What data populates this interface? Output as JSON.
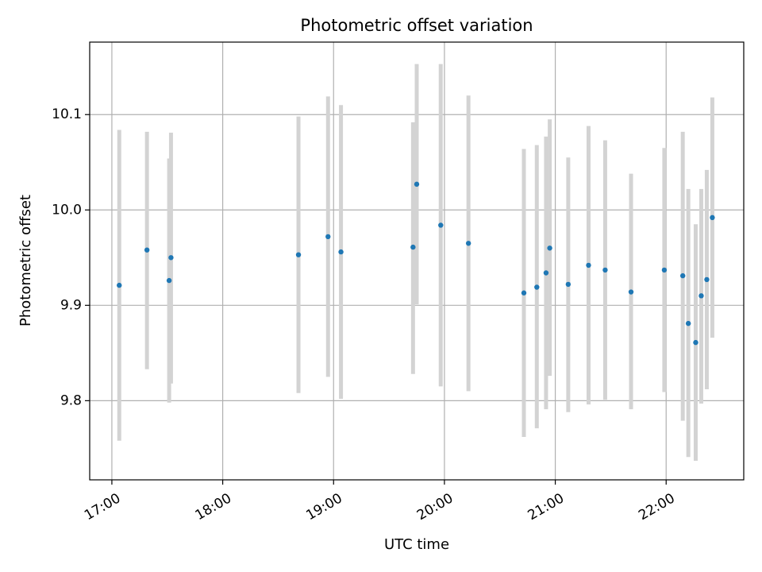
{
  "chart_data": {
    "type": "scatter",
    "title": "Photometric offset variation",
    "xlabel": "UTC time",
    "ylabel": "Photometric offset",
    "x_ticks": [
      "17:00",
      "18:00",
      "19:00",
      "20:00",
      "21:00",
      "22:00"
    ],
    "y_ticks": [
      "9.8",
      "9.9",
      "10.0",
      "10.1"
    ],
    "xlim": [
      "16:48",
      "22:42"
    ],
    "ylim": [
      9.717,
      10.176
    ],
    "grid": true,
    "errorbar_color": "#d3d3d3",
    "marker_color": "#1f77b4",
    "series": [
      {
        "points": [
          {
            "time": "17:04",
            "value": 9.921,
            "err_low": 9.758,
            "err_high": 10.084
          },
          {
            "time": "17:19",
            "value": 9.958,
            "err_low": 9.833,
            "err_high": 10.082
          },
          {
            "time": "17:31",
            "value": 9.926,
            "err_low": 9.798,
            "err_high": 10.054
          },
          {
            "time": "17:32",
            "value": 9.95,
            "err_low": 9.818,
            "err_high": 10.081
          },
          {
            "time": "18:41",
            "value": 9.953,
            "err_low": 9.808,
            "err_high": 10.098
          },
          {
            "time": "18:57",
            "value": 9.972,
            "err_low": 9.825,
            "err_high": 10.119
          },
          {
            "time": "19:04",
            "value": 9.956,
            "err_low": 9.802,
            "err_high": 10.11
          },
          {
            "time": "19:43",
            "value": 9.961,
            "err_low": 9.828,
            "err_high": 10.092
          },
          {
            "time": "19:45",
            "value": 10.027,
            "err_low": 9.901,
            "err_high": 10.153
          },
          {
            "time": "19:58",
            "value": 9.984,
            "err_low": 9.815,
            "err_high": 10.153
          },
          {
            "time": "20:13",
            "value": 9.965,
            "err_low": 9.81,
            "err_high": 10.12
          },
          {
            "time": "20:43",
            "value": 9.913,
            "err_low": 9.762,
            "err_high": 10.064
          },
          {
            "time": "20:50",
            "value": 9.919,
            "err_low": 9.771,
            "err_high": 10.068
          },
          {
            "time": "20:55",
            "value": 9.934,
            "err_low": 9.791,
            "err_high": 10.077
          },
          {
            "time": "20:57",
            "value": 9.96,
            "err_low": 9.826,
            "err_high": 10.095
          },
          {
            "time": "21:07",
            "value": 9.922,
            "err_low": 9.788,
            "err_high": 10.055
          },
          {
            "time": "21:18",
            "value": 9.942,
            "err_low": 9.796,
            "err_high": 10.088
          },
          {
            "time": "21:27",
            "value": 9.937,
            "err_low": 9.801,
            "err_high": 10.073
          },
          {
            "time": "21:41",
            "value": 9.914,
            "err_low": 9.791,
            "err_high": 10.038
          },
          {
            "time": "21:59",
            "value": 9.937,
            "err_low": 9.809,
            "err_high": 10.065
          },
          {
            "time": "22:09",
            "value": 9.931,
            "err_low": 9.779,
            "err_high": 10.082
          },
          {
            "time": "22:12",
            "value": 9.881,
            "err_low": 9.741,
            "err_high": 10.022
          },
          {
            "time": "22:16",
            "value": 9.861,
            "err_low": 9.737,
            "err_high": 9.985
          },
          {
            "time": "22:19",
            "value": 9.91,
            "err_low": 9.797,
            "err_high": 10.022
          },
          {
            "time": "22:22",
            "value": 9.927,
            "err_low": 9.812,
            "err_high": 10.042
          },
          {
            "time": "22:25",
            "value": 9.992,
            "err_low": 9.866,
            "err_high": 10.118
          }
        ]
      }
    ]
  }
}
